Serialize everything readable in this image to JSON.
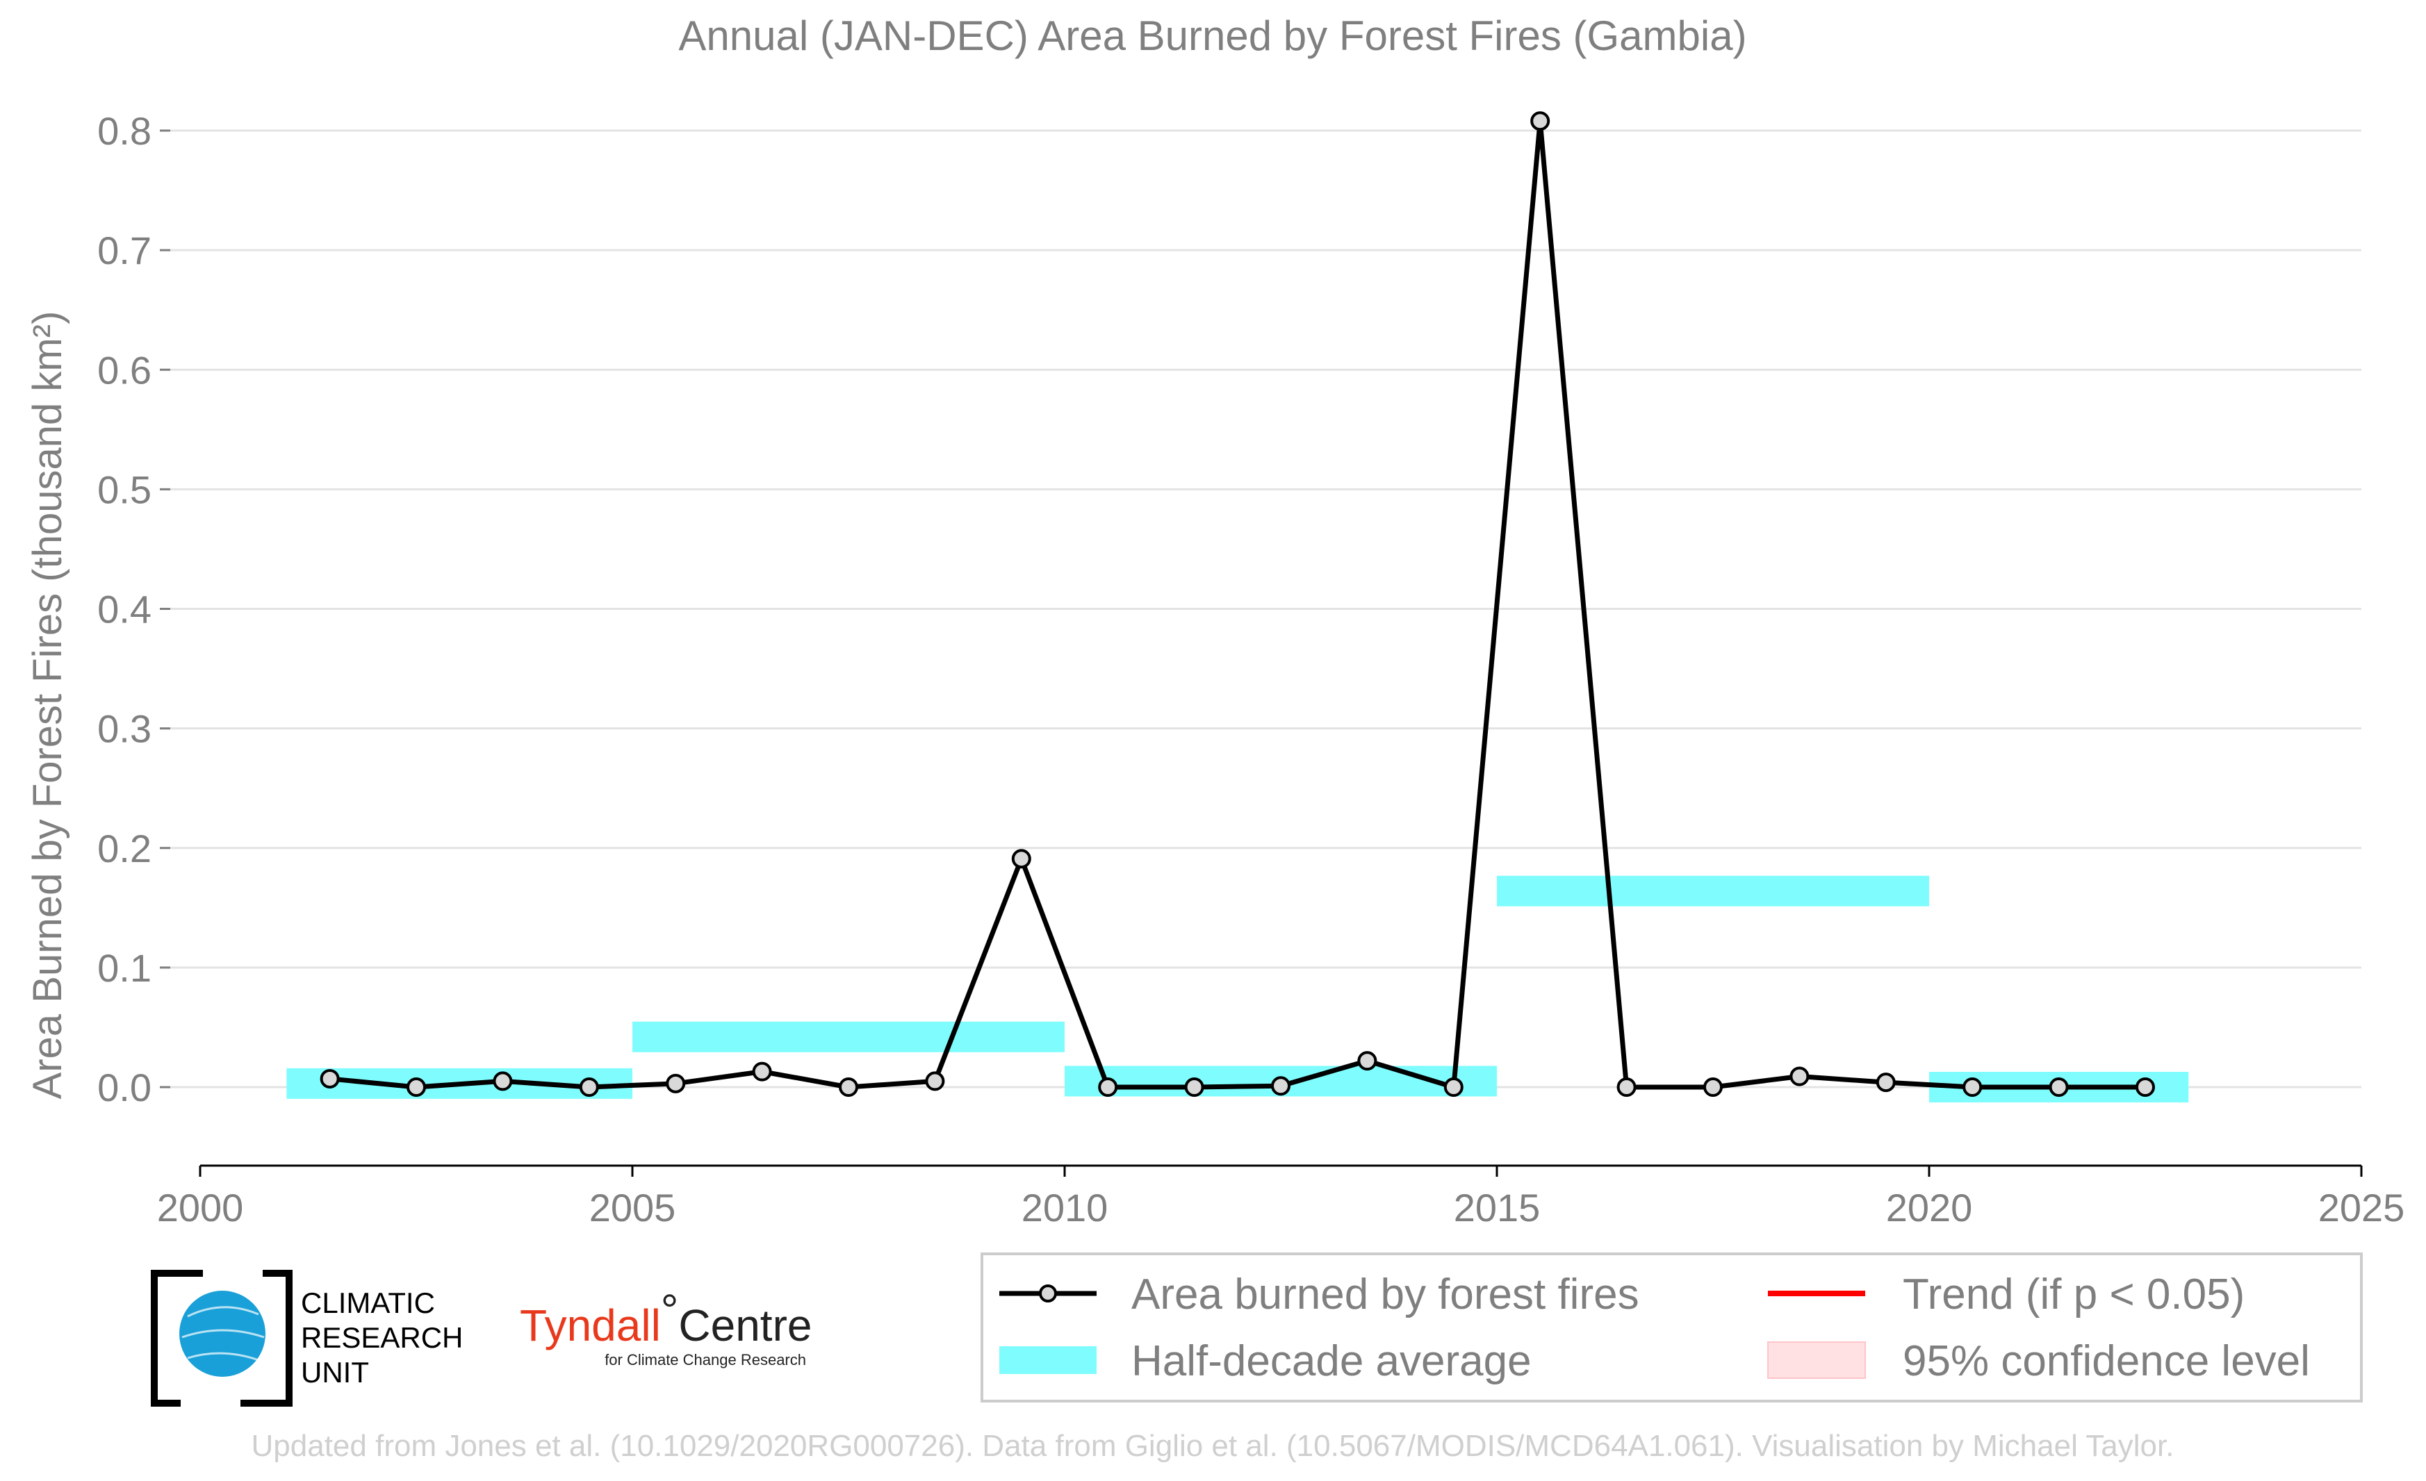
{
  "chart_data": {
    "type": "line",
    "title": "Annual (JAN-DEC) Area Burned by Forest Fires (Gambia)",
    "ylabel": "Area Burned by Forest Fires (thousand km²)",
    "xlabel": "",
    "xlim": [
      2000,
      2025
    ],
    "ylim": [
      -0.065,
      0.83
    ],
    "x_ticks": [
      "2000",
      "2005",
      "2010",
      "2015",
      "2020",
      "2025"
    ],
    "y_ticks": [
      "0.0",
      "0.1",
      "0.2",
      "0.3",
      "0.4",
      "0.5",
      "0.6",
      "0.7",
      "0.8"
    ],
    "grid": true,
    "series": [
      {
        "name": "Area burned by forest fires",
        "color": "#000000",
        "x": [
          2001.5,
          2002.5,
          2003.5,
          2004.5,
          2005.5,
          2006.5,
          2007.5,
          2008.5,
          2009.5,
          2010.5,
          2011.5,
          2012.5,
          2013.5,
          2014.5,
          2015.5,
          2016.5,
          2017.5,
          2018.5,
          2019.5,
          2020.5,
          2021.5,
          2022.5
        ],
        "values": [
          0.007,
          0.0,
          0.005,
          0.0,
          0.003,
          0.013,
          0.0,
          0.005,
          0.191,
          0.0,
          0.0,
          0.001,
          0.022,
          0.0,
          0.808,
          0.0,
          0.0,
          0.009,
          0.004,
          0.0,
          0.0,
          0.0
        ]
      }
    ],
    "half_decade_average": {
      "name": "Half-decade average",
      "color": "#7ffdfe",
      "segments": [
        {
          "x0": 2001,
          "x1": 2005,
          "value": 0.003
        },
        {
          "x0": 2005,
          "x1": 2010,
          "value": 0.042
        },
        {
          "x0": 2010,
          "x1": 2015,
          "value": 0.005
        },
        {
          "x0": 2015,
          "x1": 2020,
          "value": 0.164
        },
        {
          "x0": 2020,
          "x1": 2023,
          "value": 0.0
        }
      ]
    },
    "legend": {
      "placement": "bottom-right",
      "entries": [
        {
          "label": "Area burned by forest fires",
          "kind": "line-marker",
          "color": "#000000"
        },
        {
          "label": "Trend (if p < 0.05)",
          "kind": "line",
          "color": "#ff0000"
        },
        {
          "label": "Half-decade average",
          "kind": "band",
          "color": "#7ffdfe"
        },
        {
          "label": "95% confidence level",
          "kind": "patch",
          "color": "#ffe0e3"
        }
      ]
    }
  },
  "logos": {
    "cru": [
      "CLIMATIC",
      "RESEARCH",
      "UNIT"
    ],
    "tyndall_main": "Tyndall",
    "tyndall_deg": "°",
    "tyndall_centre": "Centre",
    "tyndall_sub": "for Climate Change Research"
  },
  "credit": "Updated from Jones et al. (10.1029/2020RG000726). Data from Giglio et al. (10.5067/MODIS/MCD64A1.061). Visualisation by Michael Taylor."
}
